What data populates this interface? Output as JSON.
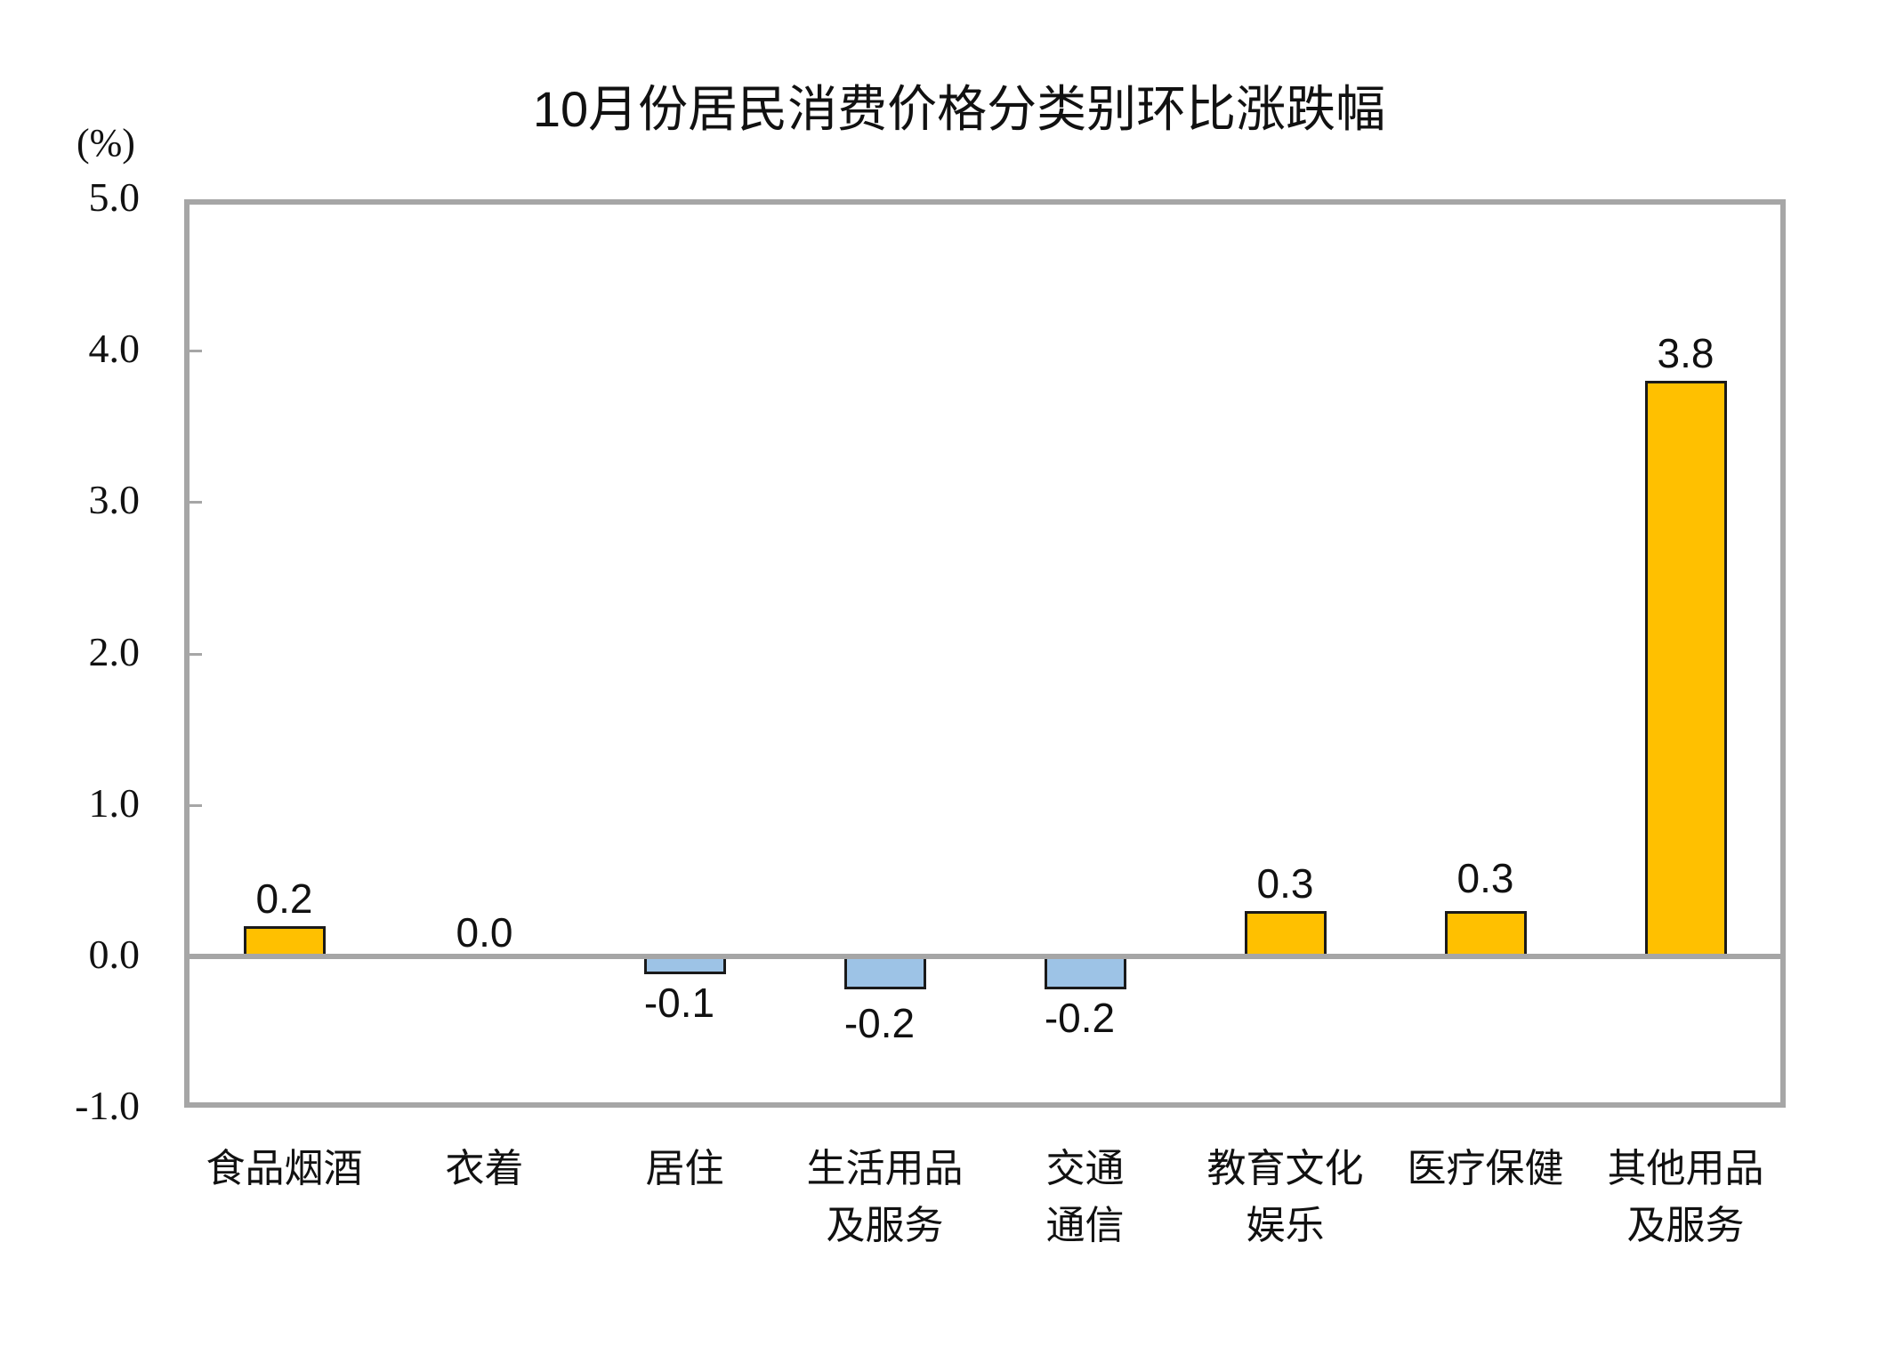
{
  "title": "10月份居民消费价格分类别环比涨跌幅",
  "unit_label": "(%)",
  "colors": {
    "positive": "#FFC000",
    "negative": "#9DC3E6",
    "axis": "#A6A6A6",
    "bar_border": "#1A1A1A"
  },
  "y_ticks": [
    "5.0",
    "4.0",
    "3.0",
    "2.0",
    "1.0",
    "0.0",
    "-1.0"
  ],
  "categories": [
    {
      "line1": "食品烟酒",
      "line2": "",
      "value_label": "0.2"
    },
    {
      "line1": "衣着",
      "line2": "",
      "value_label": "0.0"
    },
    {
      "line1": "居住",
      "line2": "",
      "value_label": "-0.1"
    },
    {
      "line1": "生活用品",
      "line2": "及服务",
      "value_label": "-0.2"
    },
    {
      "line1": "交通",
      "line2": "通信",
      "value_label": "-0.2"
    },
    {
      "line1": "教育文化",
      "line2": "娱乐",
      "value_label": "0.3"
    },
    {
      "line1": "医疗保健",
      "line2": "",
      "value_label": "0.3"
    },
    {
      "line1": "其他用品",
      "line2": "及服务",
      "value_label": "3.8"
    }
  ],
  "chart_data": {
    "type": "bar",
    "title": "10月份居民消费价格分类别环比涨跌幅",
    "xlabel": "",
    "ylabel": "(%)",
    "categories": [
      "食品烟酒",
      "衣着",
      "居住",
      "生活用品及服务",
      "交通通信",
      "教育文化娱乐",
      "医疗保健",
      "其他用品及服务"
    ],
    "values": [
      0.2,
      0.0,
      -0.1,
      -0.2,
      -0.2,
      0.3,
      0.3,
      3.8
    ],
    "ylim": [
      -1.0,
      5.0
    ],
    "yticks": [
      -1.0,
      0.0,
      1.0,
      2.0,
      3.0,
      4.0,
      5.0
    ],
    "grid": false,
    "legend": null,
    "data_labels": true,
    "bar_colors": {
      "positive": "#FFC000",
      "negative": "#9DC3E6"
    }
  }
}
